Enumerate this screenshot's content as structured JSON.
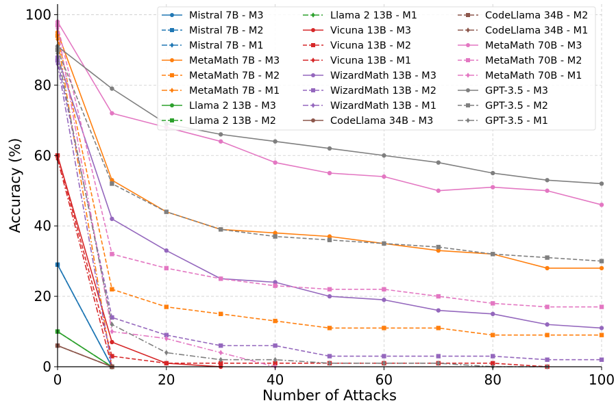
{
  "chart_data": {
    "type": "line",
    "xlabel": "Number of Attacks",
    "ylabel": "Accuracy (%)",
    "xlim": [
      0,
      100
    ],
    "ylim": [
      0,
      103
    ],
    "xticks": [
      0,
      20,
      40,
      60,
      80,
      100
    ],
    "yticks": [
      0,
      20,
      40,
      60,
      80,
      100
    ],
    "grid": true,
    "legend": {
      "position": "top-right",
      "columns": 3
    },
    "series": [
      {
        "name": "Mistral 7B - M3",
        "color": "#1f77b4",
        "style": "solid",
        "marker": "circle",
        "x": [
          0,
          10
        ],
        "y": [
          29,
          0
        ]
      },
      {
        "name": "Mistral 7B - M2",
        "color": "#1f77b4",
        "style": "dashed",
        "marker": "square",
        "x": [
          0,
          10
        ],
        "y": [
          29,
          0
        ]
      },
      {
        "name": "Mistral 7B - M1",
        "color": "#1f77b4",
        "style": "dashdot",
        "marker": "diamond",
        "x": [
          0,
          10
        ],
        "y": [
          29,
          0
        ]
      },
      {
        "name": "MetaMath 7B - M3",
        "color": "#ff7f0e",
        "style": "solid",
        "marker": "circle",
        "x": [
          0,
          10,
          20,
          30,
          40,
          50,
          60,
          70,
          80,
          90,
          100
        ],
        "y": [
          95,
          53,
          44,
          39,
          38,
          37,
          35,
          33,
          32,
          28,
          28
        ]
      },
      {
        "name": "MetaMath 7B - M2",
        "color": "#ff7f0e",
        "style": "dashed",
        "marker": "square",
        "x": [
          0,
          10,
          20,
          30,
          40,
          50,
          60,
          70,
          80,
          90,
          100
        ],
        "y": [
          94,
          22,
          17,
          15,
          13,
          11,
          11,
          11,
          9,
          9,
          9
        ]
      },
      {
        "name": "MetaMath 7B - M1",
        "color": "#ff7f0e",
        "style": "dashdot",
        "marker": "diamond",
        "x": [
          0,
          10
        ],
        "y": [
          93,
          0
        ]
      },
      {
        "name": "Llama 2 13B - M3",
        "color": "#2ca02c",
        "style": "solid",
        "marker": "circle",
        "x": [
          0,
          10
        ],
        "y": [
          10,
          0
        ]
      },
      {
        "name": "Llama 2 13B - M2",
        "color": "#2ca02c",
        "style": "dashed",
        "marker": "square",
        "x": [
          0,
          10
        ],
        "y": [
          10,
          0
        ]
      },
      {
        "name": "Llama 2 13B - M1",
        "color": "#2ca02c",
        "style": "dashdot",
        "marker": "diamond",
        "x": [
          0,
          10
        ],
        "y": [
          10,
          0
        ]
      },
      {
        "name": "Vicuna 13B - M3",
        "color": "#d62728",
        "style": "solid",
        "marker": "circle",
        "x": [
          0,
          10,
          20,
          30
        ],
        "y": [
          60,
          7,
          1,
          0
        ]
      },
      {
        "name": "Vicuna 13B - M2",
        "color": "#d62728",
        "style": "dashed",
        "marker": "square",
        "x": [
          0,
          10,
          20,
          30,
          40,
          50,
          60,
          70,
          80,
          90
        ],
        "y": [
          60,
          3,
          1,
          1,
          1,
          1,
          1,
          1,
          1,
          0
        ]
      },
      {
        "name": "Vicuna 13B - M1",
        "color": "#d62728",
        "style": "dashdot",
        "marker": "diamond",
        "x": [
          0,
          10
        ],
        "y": [
          59,
          0
        ]
      },
      {
        "name": "WizardMath 13B - M3",
        "color": "#9467bd",
        "style": "solid",
        "marker": "circle",
        "x": [
          0,
          10,
          20,
          30,
          40,
          50,
          60,
          70,
          80,
          90,
          100
        ],
        "y": [
          88,
          42,
          33,
          25,
          24,
          20,
          19,
          16,
          15,
          12,
          11
        ]
      },
      {
        "name": "WizardMath 13B - M2",
        "color": "#9467bd",
        "style": "dashed",
        "marker": "square",
        "x": [
          0,
          10,
          20,
          30,
          40,
          50,
          60,
          70,
          80,
          90,
          100
        ],
        "y": [
          87,
          14,
          9,
          6,
          6,
          3,
          3,
          3,
          3,
          2,
          2
        ]
      },
      {
        "name": "WizardMath 13B - M1",
        "color": "#9467bd",
        "style": "dashdot",
        "marker": "diamond",
        "x": [
          0,
          10
        ],
        "y": [
          86,
          0
        ]
      },
      {
        "name": "CodeLlama 34B - M3",
        "color": "#8c564b",
        "style": "solid",
        "marker": "circle",
        "x": [
          0,
          10
        ],
        "y": [
          6,
          0
        ]
      },
      {
        "name": "CodeLlama 34B - M2",
        "color": "#8c564b",
        "style": "dashed",
        "marker": "square",
        "x": [
          0,
          10
        ],
        "y": [
          6,
          0
        ]
      },
      {
        "name": "CodeLlama 34B - M1",
        "color": "#8c564b",
        "style": "dashdot",
        "marker": "diamond",
        "x": [
          0,
          10
        ],
        "y": [
          6,
          0
        ]
      },
      {
        "name": "MetaMath 70B - M3",
        "color": "#e377c2",
        "style": "solid",
        "marker": "circle",
        "x": [
          0,
          10,
          20,
          30,
          40,
          50,
          60,
          70,
          80,
          90,
          100
        ],
        "y": [
          98,
          72,
          68,
          64,
          58,
          55,
          54,
          50,
          51,
          50,
          46
        ]
      },
      {
        "name": "MetaMath 70B - M2",
        "color": "#e377c2",
        "style": "dashed",
        "marker": "square",
        "x": [
          0,
          10,
          20,
          30,
          40,
          50,
          60,
          70,
          80,
          90,
          100
        ],
        "y": [
          97,
          32,
          28,
          25,
          23,
          22,
          22,
          20,
          18,
          17,
          17
        ]
      },
      {
        "name": "MetaMath 70B - M1",
        "color": "#e377c2",
        "style": "dashdot",
        "marker": "diamond",
        "x": [
          0,
          10,
          20,
          30,
          40
        ],
        "y": [
          96,
          10,
          8,
          4,
          0
        ]
      },
      {
        "name": "GPT-3.5 - M3",
        "color": "#7f7f7f",
        "style": "solid",
        "marker": "circle",
        "x": [
          0,
          10,
          20,
          30,
          40,
          50,
          60,
          70,
          80,
          90,
          100
        ],
        "y": [
          91,
          79,
          69,
          66,
          64,
          62,
          60,
          58,
          55,
          53,
          52
        ]
      },
      {
        "name": "GPT-3.5 - M2",
        "color": "#7f7f7f",
        "style": "dashed",
        "marker": "square",
        "x": [
          0,
          10,
          20,
          30,
          40,
          50,
          60,
          70,
          80,
          90,
          100
        ],
        "y": [
          90,
          52,
          44,
          39,
          37,
          36,
          35,
          34,
          32,
          31,
          30
        ]
      },
      {
        "name": "GPT-3.5 - M1",
        "color": "#7f7f7f",
        "style": "dashdot",
        "marker": "diamond",
        "x": [
          0,
          10,
          20,
          30,
          40,
          50,
          60,
          70,
          80,
          90
        ],
        "y": [
          89,
          12,
          4,
          2,
          2,
          1,
          1,
          1,
          0,
          0
        ]
      }
    ]
  }
}
